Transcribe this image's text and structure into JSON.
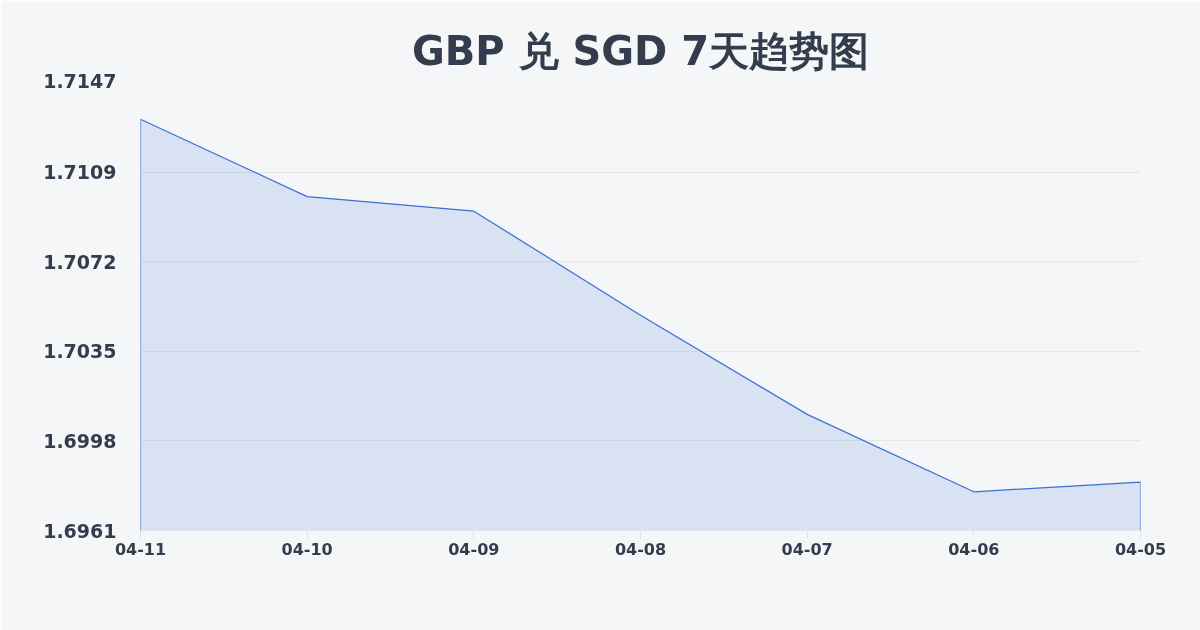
{
  "chart_data": {
    "type": "area",
    "title": "GBP 兑 SGD 7天趋势图",
    "categories": [
      "04-11",
      "04-10",
      "04-09",
      "04-08",
      "04-07",
      "04-06",
      "04-05"
    ],
    "values": [
      1.7131,
      1.7099,
      1.7093,
      1.705,
      1.7009,
      1.6977,
      1.6981
    ],
    "color": "#3b6fd4",
    "ylim": [
      1.6961,
      1.7147
    ],
    "yticks": [
      1.6961,
      1.6998,
      1.7035,
      1.7072,
      1.7109,
      1.7147
    ],
    "grid": "y"
  }
}
